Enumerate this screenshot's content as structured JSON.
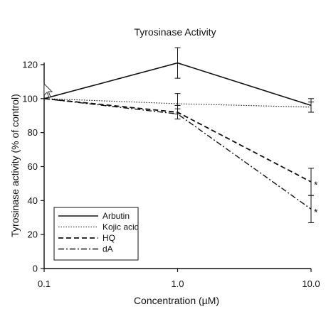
{
  "chart_data": {
    "type": "line",
    "title": "Tyrosinase Activity",
    "xlabel": "Concentration (µM)",
    "ylabel": "Tyrosinase activity (% of control)",
    "x_scale": "log",
    "x": [
      0.1,
      1.0,
      10.0
    ],
    "x_tick_labels": [
      "0.1",
      "1.0",
      "10.0"
    ],
    "ylim": [
      0,
      120
    ],
    "y_ticks": [
      0,
      20,
      40,
      60,
      80,
      100,
      120
    ],
    "grid": false,
    "legend_position": "bottom-left",
    "series": [
      {
        "name": "Arbutin",
        "style": "solid",
        "values": [
          100,
          121,
          96
        ],
        "errors": [
          0,
          9,
          4
        ]
      },
      {
        "name": "Kojic acid",
        "style": "dotted",
        "values": [
          100,
          97,
          95
        ],
        "errors": [
          0,
          6,
          3
        ]
      },
      {
        "name": "HQ",
        "style": "dashed",
        "values": [
          100,
          92,
          51
        ],
        "errors": [
          0,
          4,
          8
        ]
      },
      {
        "name": "dA",
        "style": "dashdot",
        "values": [
          100,
          91,
          35
        ],
        "errors": [
          0,
          3,
          8
        ]
      }
    ],
    "annotations": [
      {
        "text": "*",
        "x": 10.0,
        "y": 51
      },
      {
        "text": "*",
        "x": 10.0,
        "y": 35
      }
    ]
  }
}
